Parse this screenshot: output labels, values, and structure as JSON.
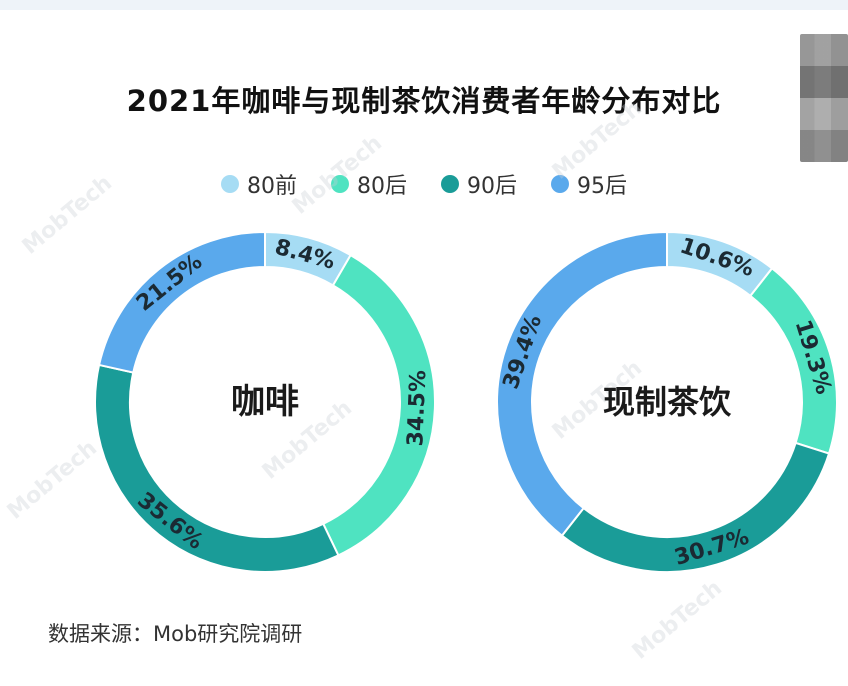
{
  "title": "2021年咖啡与现制茶饮消费者年龄分布对比",
  "legend": [
    {
      "label": "80前",
      "color": "#a6dcf4"
    },
    {
      "label": "80后",
      "color": "#4fe3c1"
    },
    {
      "label": "90后",
      "color": "#1a9c98"
    },
    {
      "label": "95后",
      "color": "#5aa9ec"
    }
  ],
  "source": "数据来源：Mob研究院调研",
  "watermark": "MobTech",
  "chart_data": [
    {
      "type": "pie",
      "center_label": "咖啡",
      "categories": [
        "80前",
        "80后",
        "90后",
        "95后"
      ],
      "values": [
        8.4,
        34.5,
        35.6,
        21.5
      ],
      "labels": [
        "8.4%",
        "34.5%",
        "35.6%",
        "21.5%"
      ]
    },
    {
      "type": "pie",
      "center_label": "现制茶饮",
      "categories": [
        "80前",
        "80后",
        "90后",
        "95后"
      ],
      "values": [
        10.6,
        19.3,
        30.7,
        39.4
      ],
      "labels": [
        "10.6%",
        "19.3%",
        "30.7%",
        "39.4%"
      ]
    }
  ]
}
